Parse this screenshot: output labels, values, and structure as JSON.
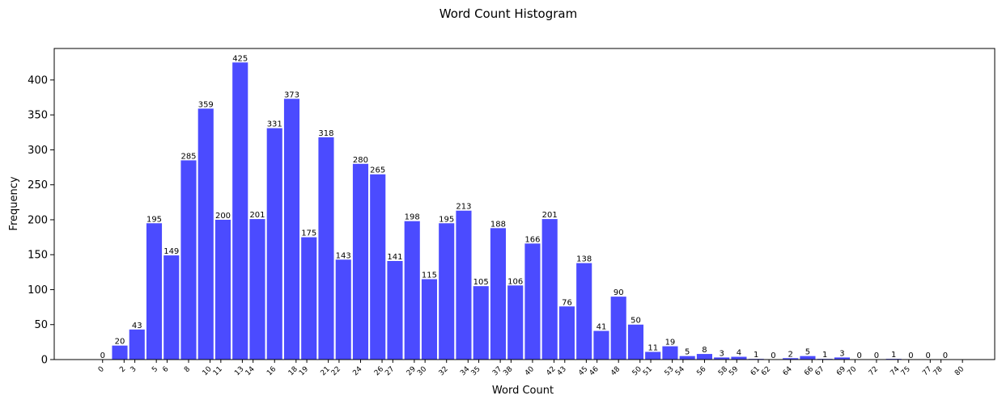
{
  "chart_data": {
    "type": "bar",
    "title": "Word Count Histogram",
    "xlabel": "Word Count",
    "ylabel": "Frequency",
    "bar_color": "#4b4bff",
    "ylim": [
      0,
      445
    ],
    "y_ticks": [
      0,
      50,
      100,
      150,
      200,
      250,
      300,
      350,
      400
    ],
    "x_range": [
      -4.5,
      83
    ],
    "x_tick_labels": [
      0,
      2,
      3,
      5,
      6,
      8,
      10,
      11,
      13,
      14,
      16,
      18,
      19,
      21,
      22,
      24,
      26,
      27,
      29,
      30,
      32,
      34,
      35,
      37,
      38,
      40,
      42,
      43,
      45,
      46,
      48,
      50,
      51,
      53,
      54,
      56,
      58,
      59,
      61,
      62,
      64,
      66,
      67,
      69,
      70,
      72,
      74,
      75,
      77,
      78,
      80
    ],
    "bars": [
      {
        "x": 0.0,
        "value": 0
      },
      {
        "x": 1.6,
        "value": 20
      },
      {
        "x": 3.2,
        "value": 43
      },
      {
        "x": 4.8,
        "value": 195
      },
      {
        "x": 6.4,
        "value": 149
      },
      {
        "x": 8.0,
        "value": 285
      },
      {
        "x": 9.6,
        "value": 359
      },
      {
        "x": 11.2,
        "value": 200
      },
      {
        "x": 12.8,
        "value": 425
      },
      {
        "x": 14.4,
        "value": 201
      },
      {
        "x": 16.0,
        "value": 331
      },
      {
        "x": 17.6,
        "value": 373
      },
      {
        "x": 19.2,
        "value": 175
      },
      {
        "x": 20.8,
        "value": 318
      },
      {
        "x": 22.4,
        "value": 143
      },
      {
        "x": 24.0,
        "value": 280
      },
      {
        "x": 25.6,
        "value": 265
      },
      {
        "x": 27.2,
        "value": 141
      },
      {
        "x": 28.8,
        "value": 198
      },
      {
        "x": 30.4,
        "value": 115
      },
      {
        "x": 32.0,
        "value": 195
      },
      {
        "x": 33.6,
        "value": 213
      },
      {
        "x": 35.2,
        "value": 105
      },
      {
        "x": 36.8,
        "value": 188
      },
      {
        "x": 38.4,
        "value": 106
      },
      {
        "x": 40.0,
        "value": 166
      },
      {
        "x": 41.6,
        "value": 201
      },
      {
        "x": 43.2,
        "value": 76
      },
      {
        "x": 44.8,
        "value": 138
      },
      {
        "x": 46.4,
        "value": 41
      },
      {
        "x": 48.0,
        "value": 90
      },
      {
        "x": 49.6,
        "value": 50
      },
      {
        "x": 51.2,
        "value": 11
      },
      {
        "x": 52.8,
        "value": 19
      },
      {
        "x": 54.4,
        "value": 5
      },
      {
        "x": 56.0,
        "value": 8
      },
      {
        "x": 57.6,
        "value": 3
      },
      {
        "x": 59.2,
        "value": 4
      },
      {
        "x": 60.8,
        "value": 1
      },
      {
        "x": 62.4,
        "value": 0
      },
      {
        "x": 64.0,
        "value": 2
      },
      {
        "x": 65.6,
        "value": 5
      },
      {
        "x": 67.2,
        "value": 1
      },
      {
        "x": 68.8,
        "value": 3
      },
      {
        "x": 70.4,
        "value": 0
      },
      {
        "x": 72.0,
        "value": 0
      },
      {
        "x": 73.6,
        "value": 1
      },
      {
        "x": 75.2,
        "value": 0
      },
      {
        "x": 76.8,
        "value": 0
      },
      {
        "x": 78.4,
        "value": 0
      }
    ]
  }
}
